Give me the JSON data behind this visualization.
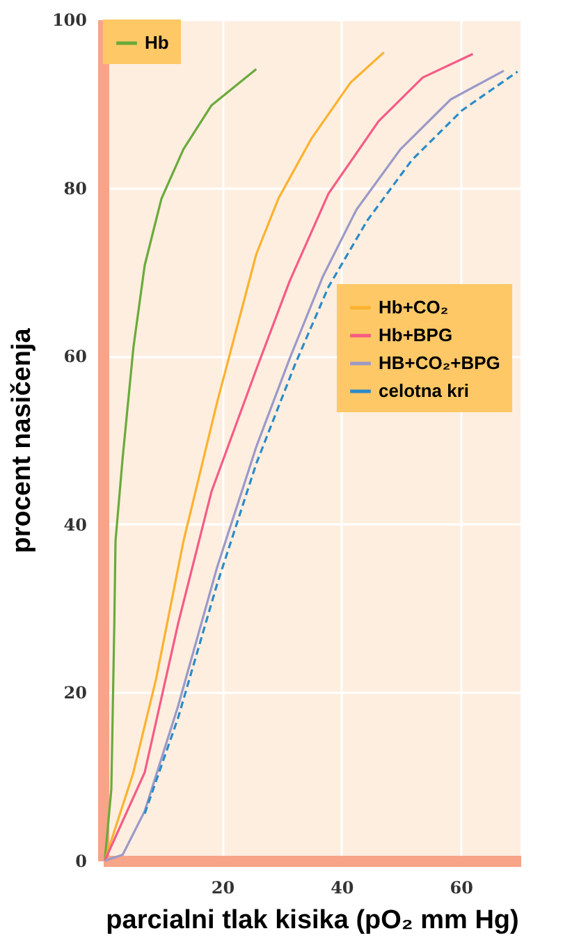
{
  "chart_data": {
    "type": "line",
    "xlabel": "parcialni tlak kisika (pO₂ mm Hg)",
    "ylabel": "procent nasičenja",
    "xlim": [
      0,
      70
    ],
    "ylim": [
      0,
      100
    ],
    "xticks": [
      20,
      40,
      60
    ],
    "yticks": [
      0,
      20,
      40,
      60,
      80,
      100
    ],
    "grid": true,
    "legend": "right",
    "marker": "none",
    "series": [
      {
        "name": "Hb",
        "color": "#6aaa3a",
        "x": [
          0.3,
          1.4,
          1.9,
          2.1,
          3.3,
          5.1,
          7.0,
          9.8,
          13.5,
          18.2,
          25.7
        ],
        "values": [
          0,
          8.5,
          28.2,
          38,
          47.9,
          61,
          70.8,
          78.7,
          84.6,
          89.8,
          94.1
        ]
      },
      {
        "name": "Hb+CO₂",
        "color": "#fbb22e",
        "x": [
          0.3,
          5.1,
          8.9,
          13.5,
          19.1,
          25.7,
          29.4,
          35,
          41.5,
          47.1
        ],
        "values": [
          0,
          10.5,
          21.6,
          38,
          54.4,
          72.1,
          78.7,
          85.9,
          92.5,
          96.1
        ]
      },
      {
        "name": "Hb+BPG",
        "color": "#f55b85",
        "x": [
          0.3,
          7,
          12.6,
          18.2,
          25.7,
          31.3,
          37.8,
          46.2,
          53.6,
          62
        ],
        "values": [
          0,
          10.5,
          28.2,
          43.9,
          58.4,
          68.9,
          79.3,
          87.9,
          93.1,
          95.9
        ]
      },
      {
        "name": "HB+CO₂+BPG",
        "color": "#9a9ac8",
        "x": [
          0.3,
          3.3,
          7,
          12.6,
          19.1,
          25.7,
          31.3,
          36.9,
          42.5,
          49.9,
          58.3,
          67.2
        ],
        "values": [
          0,
          0.7,
          5.9,
          18.4,
          34.8,
          49.2,
          59.7,
          69.5,
          77.4,
          84.6,
          90.5,
          93.9
        ]
      },
      {
        "name": "celotna kri",
        "color": "#2a8bc8",
        "line_style": "dashed",
        "x": [
          7,
          12.6,
          19.1,
          25.7,
          32.2,
          37.8,
          44.3,
          51.8,
          60.2,
          69.5
        ],
        "values": [
          5.6,
          17,
          32.8,
          47.2,
          59,
          68.2,
          76.1,
          83.3,
          89.2,
          93.8
        ]
      }
    ]
  }
}
